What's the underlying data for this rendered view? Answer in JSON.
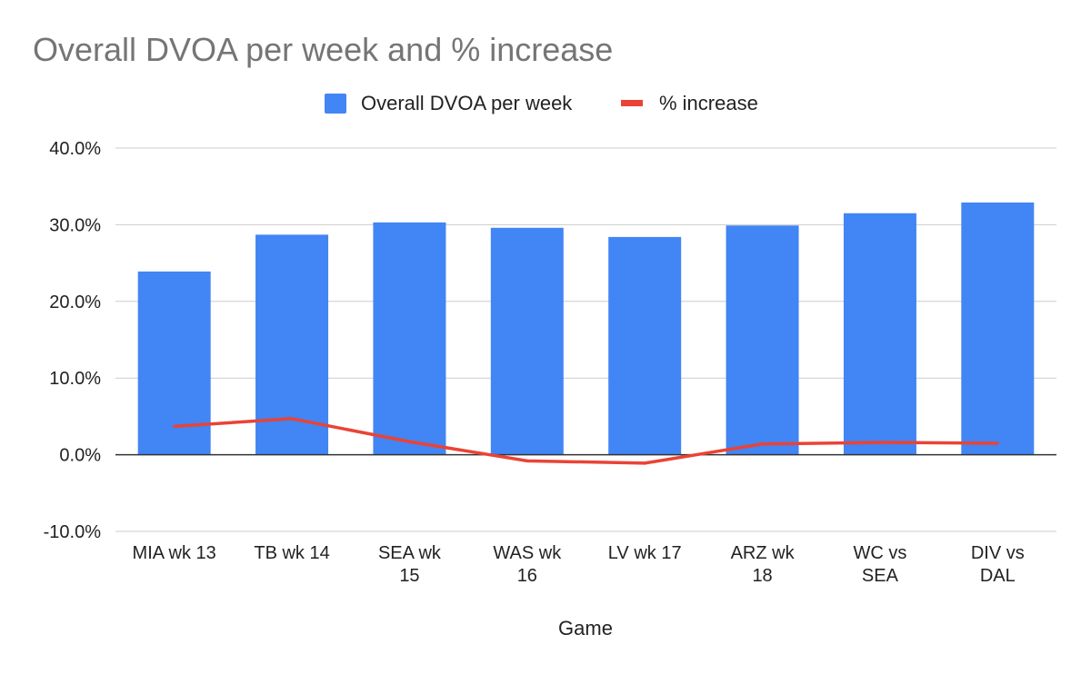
{
  "chart_data": {
    "type": "bar",
    "title": "Overall DVOA per week and % increase",
    "xlabel": "Game",
    "ylabel": "",
    "ylim": [
      -0.1,
      0.4
    ],
    "y_ticks": [
      "40.0%",
      "30.0%",
      "20.0%",
      "10.0%",
      "0.0%",
      "-10.0%"
    ],
    "y_tick_values": [
      0.4,
      0.3,
      0.2,
      0.1,
      0.0,
      -0.1
    ],
    "categories": [
      [
        "MIA wk 13"
      ],
      [
        "TB wk 14"
      ],
      [
        "SEA wk",
        "15"
      ],
      [
        "WAS wk",
        "16"
      ],
      [
        "LV wk 17"
      ],
      [
        "ARZ wk",
        "18"
      ],
      [
        "WC vs",
        "SEA"
      ],
      [
        "DIV vs",
        "DAL"
      ]
    ],
    "series": [
      {
        "name": "Overall DVOA per week",
        "type": "bar",
        "color": "#4285f4",
        "values": [
          0.239,
          0.287,
          0.303,
          0.296,
          0.284,
          0.299,
          0.315,
          0.329
        ]
      },
      {
        "name": "% increase",
        "type": "line",
        "color": "#ea4335",
        "values": [
          0.037,
          0.047,
          0.017,
          -0.008,
          -0.011,
          0.014,
          0.016,
          0.015
        ]
      }
    ],
    "legend": "top",
    "grid": true
  }
}
